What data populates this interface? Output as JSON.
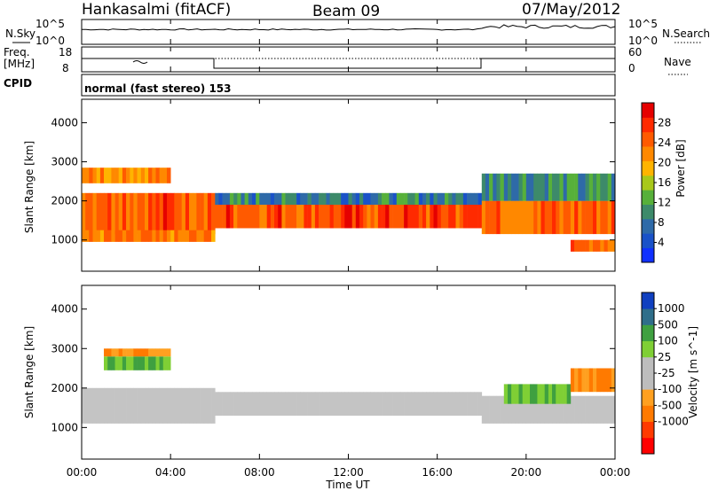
{
  "header": {
    "station": "Hankasalmi (fitACF)",
    "beam": "Beam 09",
    "date": "07/May/2012"
  },
  "top_panels": {
    "nsky_label": "N.Sky",
    "nsearch_label": "N.Search",
    "noise_ticks": [
      "10^5",
      "10^0"
    ],
    "freq_label": [
      "Freq.",
      "[MHz]"
    ],
    "freq_ticks": [
      "18",
      "8"
    ],
    "nave_label": "Nave",
    "nave_ticks": [
      "60",
      "0"
    ],
    "cpid_label": "CPID",
    "cpid_text": "normal (fast stereo) 153"
  },
  "x_axis": {
    "label": "Time UT",
    "ticks": [
      "00:00",
      "04:00",
      "08:00",
      "12:00",
      "16:00",
      "20:00",
      "00:00"
    ]
  },
  "colors": {
    "power_scale": [
      "#1030ff",
      "#1a52c8",
      "#2e6aa8",
      "#3d8a6a",
      "#57b03a",
      "#a8c81a",
      "#ffb400",
      "#ff8800",
      "#ff5a00",
      "#ff2a00",
      "#e50000"
    ],
    "velocity_scale": [
      "#ff0000",
      "#ff3a00",
      "#ff7a00",
      "#ffa020",
      "#bdbdbd",
      "#bdbdbd",
      "#7fcf35",
      "#3fa040",
      "#2f6e8a",
      "#1040c0"
    ],
    "ground_scatter": "#c4c4c4"
  },
  "chart_data": [
    {
      "type": "heatmap",
      "name": "power",
      "ylabel": "Slant Range [km]",
      "yticks": [
        1000,
        2000,
        3000,
        4000
      ],
      "ylim": [
        200,
        4600
      ],
      "xlim_hours": [
        0,
        24
      ],
      "colorbar_label": "Power [dB]",
      "colorbar_ticks": [
        4,
        8,
        12,
        16,
        20,
        24,
        28
      ],
      "colorbar_range": [
        0,
        32
      ],
      "bands": [
        {
          "t0": 0,
          "t1": 6,
          "r0": 1150,
          "r1": 2200,
          "value": 26
        },
        {
          "t0": 0,
          "t1": 6,
          "r0": 950,
          "r1": 1250,
          "value": 22
        },
        {
          "t0": 0,
          "t1": 4,
          "r0": 2450,
          "r1": 2850,
          "value": 22
        },
        {
          "t0": 6,
          "t1": 18,
          "r0": 1300,
          "r1": 1900,
          "value": 26
        },
        {
          "t0": 6,
          "t1": 18,
          "r0": 1900,
          "r1": 2200,
          "value": 9
        },
        {
          "t0": 18,
          "t1": 24,
          "r0": 1150,
          "r1": 2000,
          "value": 24
        },
        {
          "t0": 18,
          "t1": 24,
          "r0": 2000,
          "r1": 2700,
          "value": 10
        },
        {
          "t0": 22,
          "t1": 24,
          "r0": 700,
          "r1": 1000,
          "value": 25
        }
      ]
    },
    {
      "type": "heatmap",
      "name": "velocity",
      "ylabel": "Slant Range [km]",
      "yticks": [
        1000,
        2000,
        3000,
        4000
      ],
      "ylim": [
        200,
        4600
      ],
      "xlim_hours": [
        0,
        24
      ],
      "colorbar_label": "Velocity [m s^-1]",
      "colorbar_ticks": [
        1000,
        500,
        100,
        25,
        -25,
        -100,
        -500,
        -1000
      ],
      "bands": [
        {
          "t0": 0,
          "t1": 6,
          "r0": 1100,
          "r1": 2000,
          "value": 0,
          "ground": true
        },
        {
          "t0": 6,
          "t1": 18,
          "r0": 1300,
          "r1": 1900,
          "value": 0,
          "ground": true
        },
        {
          "t0": 18,
          "t1": 24,
          "r0": 1100,
          "r1": 1800,
          "value": 0,
          "ground": true
        },
        {
          "t0": 1,
          "t1": 4,
          "r0": 2450,
          "r1": 2800,
          "value": 200
        },
        {
          "t0": 1,
          "t1": 4,
          "r0": 2800,
          "r1": 3000,
          "value": -200
        },
        {
          "t0": 19,
          "t1": 22,
          "r0": 1600,
          "r1": 2100,
          "value": 300
        },
        {
          "t0": 22,
          "t1": 24,
          "r0": 1900,
          "r1": 2500,
          "value": -300
        }
      ]
    }
  ]
}
